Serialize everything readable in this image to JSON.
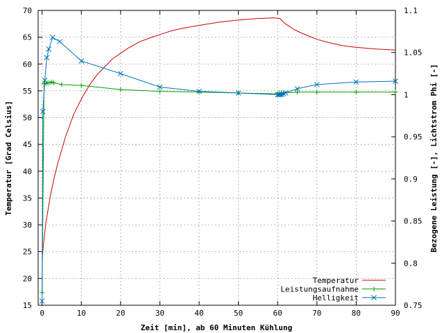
{
  "chart_data": {
    "type": "line",
    "xlabel": "Zeit [min], ab 60 Minuten Kühlung",
    "ylabel": "Temperatur [Grad Celsius]",
    "y2label": "Bezogene Leistung [-], Lichtstrom Phi [-]",
    "xlim": [
      -1,
      90
    ],
    "ylim": [
      15,
      70
    ],
    "y2lim": [
      0.75,
      1.1
    ],
    "x_ticks": [
      0,
      10,
      20,
      30,
      40,
      50,
      60,
      70,
      80,
      90
    ],
    "y_ticks": [
      15,
      20,
      25,
      30,
      35,
      40,
      45,
      50,
      55,
      60,
      65,
      70
    ],
    "y2_ticks": [
      0.75,
      0.8,
      0.85,
      0.9,
      0.95,
      1,
      1.05,
      1.1
    ],
    "y2_tick_labels": [
      "0.75",
      "0.8",
      "0.85",
      "0.9",
      "0.95",
      "1",
      "1.05",
      "1.1"
    ],
    "grid": true,
    "legend_position": "bottom-right",
    "series": [
      {
        "name": "Temperatur",
        "axis": "left",
        "color": "#cc0000",
        "marker": "none",
        "x": [
          0,
          0.5,
          1,
          2,
          3,
          4,
          5,
          6,
          7,
          8,
          9,
          10,
          12,
          14,
          16,
          18,
          20,
          22,
          25,
          28,
          30,
          33,
          36,
          40,
          45,
          50,
          55,
          59,
          60.5,
          62,
          64,
          66,
          68,
          70,
          73,
          76,
          80,
          85,
          90
        ],
        "y": [
          23.5,
          27.5,
          30.5,
          35,
          38.5,
          41.5,
          44,
          46.5,
          48.5,
          50.5,
          52,
          53.5,
          56,
          58,
          59.5,
          61,
          62,
          63,
          64.2,
          65,
          65.5,
          66.2,
          66.7,
          67.2,
          67.8,
          68.2,
          68.5,
          68.6,
          68.5,
          67.5,
          66.5,
          65.8,
          65.2,
          64.6,
          64,
          63.5,
          63.1,
          62.8,
          62.6
        ]
      },
      {
        "name": "Leistungsaufnahme",
        "axis": "right",
        "color": "#00a000",
        "marker": "plus",
        "x": [
          0,
          0.5,
          1,
          1.5,
          2,
          2.5,
          3,
          5,
          10,
          20,
          30,
          40,
          50,
          60,
          60.5,
          61,
          61.5,
          65,
          70,
          80,
          90
        ],
        "y": [
          0.765,
          1.013,
          1.013,
          1.014,
          1.014,
          1.015,
          1.014,
          1.012,
          1.011,
          1.006,
          1.004,
          1.003,
          1.002,
          1.001,
          1.002,
          1.002,
          1.002,
          1.003,
          1.003,
          1.003,
          1.003
        ]
      },
      {
        "name": "Helligkeit",
        "axis": "right",
        "color": "#0072bd",
        "marker": "x",
        "x": [
          0,
          0.2,
          0.7,
          1.2,
          1.7,
          2.7,
          4.5,
          10,
          20,
          30,
          40,
          50,
          60,
          60.3,
          60.6,
          61,
          61.5,
          62,
          65,
          70,
          80,
          90
        ],
        "y": [
          0.755,
          0.98,
          1.017,
          1.044,
          1.054,
          1.068,
          1.063,
          1.04,
          1.025,
          1.009,
          1.004,
          1.002,
          1.0,
          1.0,
          1.0,
          1.0,
          1.001,
          1.002,
          1.007,
          1.012,
          1.015,
          1.016
        ]
      }
    ]
  }
}
